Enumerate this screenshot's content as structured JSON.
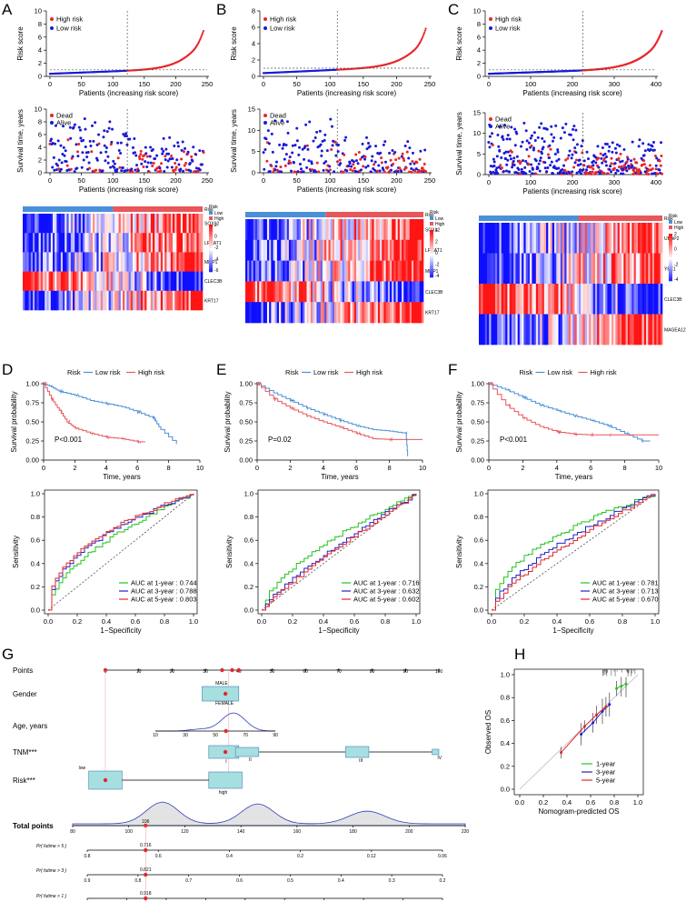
{
  "panel_labels": [
    "A",
    "B",
    "C",
    "D",
    "E",
    "F",
    "G",
    "H"
  ],
  "colors": {
    "high": "#e8262a",
    "low": "#1a1ad6",
    "green": "#22c41e",
    "blue": "#2222c8",
    "red": "#e0282d",
    "lowbar": "#4a90d9",
    "highbar": "#e8565a",
    "cal": "#f07c6c"
  },
  "chart_data": [
    {
      "id": "A1",
      "type": "scatter",
      "ylabel": "Risk score",
      "xlabel": "Patients (increasing risk score)",
      "xlim": [
        0,
        250
      ],
      "ylim": [
        0,
        10
      ],
      "xticks": [
        0,
        50,
        100,
        150,
        200,
        250
      ],
      "yticks": [
        0,
        2,
        4,
        6,
        8,
        10
      ],
      "n": 245,
      "cutoff_index": 123,
      "cutoff_value": 1,
      "legend": [
        "High risk",
        "Low risk"
      ]
    },
    {
      "id": "B1",
      "type": "scatter",
      "ylabel": "Risk score",
      "xlabel": "Patients (increasing risk score)",
      "xlim": [
        0,
        250
      ],
      "ylim": [
        0,
        8
      ],
      "xticks": [
        0,
        50,
        100,
        150,
        200,
        250
      ],
      "yticks": [
        0,
        2,
        4,
        6,
        8
      ],
      "n": 245,
      "cutoff_index": 111,
      "cutoff_value": 1,
      "legend": [
        "High risk",
        "Low risk"
      ]
    },
    {
      "id": "C1",
      "type": "scatter",
      "ylabel": "Risk score",
      "xlabel": "Patients (increasing risk score)",
      "xlim": [
        0,
        400
      ],
      "ylim": [
        0,
        10
      ],
      "xticks": [
        0,
        100,
        200,
        300,
        400
      ],
      "yticks": [
        0,
        2,
        4,
        6,
        8,
        10
      ],
      "n": 415,
      "cutoff_index": 225,
      "cutoff_value": 1,
      "legend": [
        "High risk",
        "Low risk"
      ]
    },
    {
      "id": "A2",
      "type": "scatter",
      "ylabel": "Survival time, years",
      "xlabel": "Patients (increasing risk score)",
      "xlim": [
        0,
        250
      ],
      "ylim": [
        0,
        10
      ],
      "xticks": [
        0,
        50,
        100,
        150,
        200,
        250
      ],
      "yticks": [
        0,
        2,
        4,
        6,
        8,
        10
      ],
      "legend": [
        "Dead",
        "Alive"
      ]
    },
    {
      "id": "B2",
      "type": "scatter",
      "ylabel": "Survival time, years",
      "xlabel": "Patients (increasing risk score)",
      "xlim": [
        0,
        250
      ],
      "ylim": [
        0,
        15
      ],
      "xticks": [
        0,
        50,
        100,
        150,
        200,
        250
      ],
      "yticks": [
        0,
        5,
        10,
        15
      ],
      "legend": [
        "Dead",
        "Alive"
      ]
    },
    {
      "id": "C2",
      "type": "scatter",
      "ylabel": "Survival time, years",
      "xlabel": "Patients (increasing risk score)",
      "xlim": [
        0,
        400
      ],
      "ylim": [
        0,
        15
      ],
      "xticks": [
        0,
        100,
        200,
        300,
        400
      ],
      "yticks": [
        0,
        5,
        10,
        15
      ],
      "legend": [
        "Dead",
        "Alive"
      ]
    },
    {
      "id": "A3",
      "type": "heatmap",
      "genes": [
        "SOX12",
        "LPCAT1",
        "MMP1",
        "CLEC3B",
        "KRT17"
      ],
      "legend_title": "Risk",
      "legend": [
        "Low",
        "High"
      ],
      "scale": [
        2,
        0,
        -2,
        -4,
        -6
      ],
      "label_left": "Risk"
    },
    {
      "id": "B3",
      "type": "heatmap",
      "genes": [
        "SOX12",
        "LPCAT1",
        "MMP1",
        "CLEC3B",
        "KRT17"
      ],
      "legend_title": "Risk",
      "legend": [
        "Low",
        "High"
      ],
      "scale": [
        4,
        2,
        0,
        -2,
        -4
      ],
      "label_left": "Risk"
    },
    {
      "id": "C3",
      "type": "heatmap",
      "genes": [
        "UBAP2",
        "YBX1",
        "CLEC3B",
        "MAGEA12"
      ],
      "legend_title": "Risk",
      "legend": [
        "Low",
        "High"
      ],
      "scale": [
        2,
        0,
        -2,
        -4
      ],
      "label_left": "Risk"
    },
    {
      "id": "D1",
      "type": "line",
      "title": "Risk",
      "legend": [
        "Low risk",
        "High risk"
      ],
      "ylabel": "Survival probability",
      "xlabel": "Time, years",
      "xticks": [
        0,
        2,
        4,
        6,
        8,
        10
      ],
      "yticks": [
        "0.00",
        "0.25",
        "0.50",
        "0.75",
        "1.00"
      ],
      "pvalue": "P<0.001",
      "series": [
        {
          "name": "Low risk",
          "points": [
            [
              0,
              1
            ],
            [
              0.5,
              0.96
            ],
            [
              1,
              0.9
            ],
            [
              2,
              0.85
            ],
            [
              3,
              0.78
            ],
            [
              4,
              0.74
            ],
            [
              5,
              0.7
            ],
            [
              6,
              0.63
            ],
            [
              7,
              0.55
            ],
            [
              7.5,
              0.4
            ],
            [
              8.5,
              0.21
            ]
          ]
        },
        {
          "name": "High risk",
          "points": [
            [
              0,
              1
            ],
            [
              0.5,
              0.8
            ],
            [
              1,
              0.65
            ],
            [
              1.5,
              0.5
            ],
            [
              2,
              0.42
            ],
            [
              3,
              0.35
            ],
            [
              4,
              0.3
            ],
            [
              5,
              0.28
            ],
            [
              6,
              0.24
            ],
            [
              6.5,
              0.24
            ]
          ]
        }
      ]
    },
    {
      "id": "E1",
      "type": "line",
      "title": "Risk",
      "legend": [
        "Low risk",
        "High risk"
      ],
      "ylabel": "Survival probability",
      "xlabel": "Time, years",
      "xticks": [
        0,
        2,
        4,
        6,
        8,
        10
      ],
      "yticks": [
        "0.00",
        "0.25",
        "0.50",
        "0.75",
        "1.00"
      ],
      "pvalue": "P=0.02",
      "series": [
        {
          "name": "Low risk",
          "points": [
            [
              0,
              1
            ],
            [
              1,
              0.88
            ],
            [
              2,
              0.78
            ],
            [
              3,
              0.68
            ],
            [
              4,
              0.6
            ],
            [
              5,
              0.52
            ],
            [
              6,
              0.45
            ],
            [
              7,
              0.4
            ],
            [
              8,
              0.38
            ],
            [
              9,
              0.35
            ],
            [
              9.1,
              0.05
            ]
          ]
        },
        {
          "name": "High risk",
          "points": [
            [
              0,
              1
            ],
            [
              1,
              0.8
            ],
            [
              2,
              0.68
            ],
            [
              3,
              0.58
            ],
            [
              4,
              0.5
            ],
            [
              5,
              0.43
            ],
            [
              6,
              0.35
            ],
            [
              7,
              0.28
            ],
            [
              8,
              0.27
            ],
            [
              10,
              0.27
            ]
          ]
        }
      ]
    },
    {
      "id": "F1",
      "type": "line",
      "title": "Risk",
      "legend": [
        "Low risk",
        "High risk"
      ],
      "ylabel": "Survival probability",
      "xlabel": "Time, years",
      "xticks": [
        0,
        2,
        4,
        6,
        8,
        10
      ],
      "yticks": [
        "0.00",
        "0.25",
        "0.50",
        "0.75",
        "1.00"
      ],
      "pvalue": "P<0.001",
      "series": [
        {
          "name": "Low risk",
          "points": [
            [
              0,
              1
            ],
            [
              1,
              0.92
            ],
            [
              2,
              0.82
            ],
            [
              3,
              0.72
            ],
            [
              4,
              0.65
            ],
            [
              5,
              0.58
            ],
            [
              6,
              0.52
            ],
            [
              7,
              0.45
            ],
            [
              8,
              0.35
            ],
            [
              9,
              0.25
            ],
            [
              9.5,
              0.25
            ]
          ]
        },
        {
          "name": "High risk",
          "points": [
            [
              0,
              1
            ],
            [
              1,
              0.72
            ],
            [
              2,
              0.55
            ],
            [
              3,
              0.44
            ],
            [
              4,
              0.37
            ],
            [
              5,
              0.34
            ],
            [
              6,
              0.33
            ],
            [
              7,
              0.33
            ],
            [
              8,
              0.33
            ],
            [
              10,
              0.33
            ]
          ]
        }
      ]
    },
    {
      "id": "D2",
      "type": "line",
      "ylabel": "Sensitivity",
      "xlabel": "1−Specificity",
      "xticks": [
        "0.0",
        "0.2",
        "0.4",
        "0.6",
        "0.8",
        "1.0"
      ],
      "yticks": [
        "0.0",
        "0.2",
        "0.4",
        "0.6",
        "0.8",
        "1.0"
      ],
      "series": [
        {
          "name": "AUC at 1-year",
          "auc": "0.744"
        },
        {
          "name": "AUC at 3-year",
          "auc": "0.788"
        },
        {
          "name": "AUC at 5-year",
          "auc": "0.803"
        }
      ]
    },
    {
      "id": "E2",
      "type": "line",
      "ylabel": "Sensitivity",
      "xlabel": "1−Specificity",
      "xticks": [
        "0.0",
        "0.2",
        "0.4",
        "0.6",
        "0.8",
        "1.0"
      ],
      "yticks": [
        "0.0",
        "0.2",
        "0.4",
        "0.6",
        "0.8",
        "1.0"
      ],
      "series": [
        {
          "name": "AUC at 1-year",
          "auc": "0.716"
        },
        {
          "name": "AUC at 3-year",
          "auc": "0.632"
        },
        {
          "name": "AUC at 5-year",
          "auc": "0.602"
        }
      ]
    },
    {
      "id": "F2",
      "type": "line",
      "ylabel": "Sensitivity",
      "xlabel": "1−Specificity",
      "xticks": [
        "0.0",
        "0.2",
        "0.4",
        "0.6",
        "0.8",
        "1.0"
      ],
      "yticks": [
        "0.0",
        "0.2",
        "0.4",
        "0.6",
        "0.8",
        "1.0"
      ],
      "series": [
        {
          "name": "AUC at 1-year",
          "auc": "0.781"
        },
        {
          "name": "AUC at 3-year",
          "auc": "0.713"
        },
        {
          "name": "AUC at 5-year",
          "auc": "0.670"
        }
      ]
    },
    {
      "id": "G",
      "type": "nomogram",
      "rows": [
        "Points",
        "Gender",
        "Age, years",
        "TNM***",
        "Risk***",
        "Total points",
        "Pr( futime > 5 )",
        "Pr( futime > 3 )",
        "Pr( futime > 1 )"
      ],
      "points_ticks": [
        0,
        10,
        20,
        30,
        40,
        50,
        60,
        70,
        80,
        90,
        100
      ],
      "gender_levels": [
        "MALE",
        "FEMALE"
      ],
      "age_ticks": [
        10,
        30,
        50,
        70,
        90
      ],
      "tnm_levels": [
        "I",
        "II",
        "III",
        "IV"
      ],
      "risk_levels": [
        "low",
        "high"
      ],
      "total_ticks": [
        80,
        100,
        120,
        140,
        160,
        180,
        200,
        220
      ],
      "total_value": "106",
      "p5_ticks": [
        "0.8",
        "0.6",
        "0.4",
        "0.2",
        "0.12",
        "0.06"
      ],
      "p5_value": "0.716",
      "p3_ticks": [
        "0.9",
        "0.8",
        "0.7",
        "0.6",
        "0.5",
        "0.4",
        "0.3",
        "0.2"
      ],
      "p3_value": "0.821",
      "p1_ticks": [
        "0.95",
        "0.9",
        "0.85",
        "0.8",
        "0.75",
        "0.7",
        "0.65",
        "0.6",
        "0.55",
        "0.5"
      ],
      "p1_value": "0.918"
    },
    {
      "id": "H",
      "type": "line",
      "xlabel": "Nomogram-predicted OS",
      "ylabel": "Observed OS",
      "xticks": [
        "0.0",
        "0.2",
        "0.4",
        "0.6",
        "0.8",
        "1.0"
      ],
      "yticks": [
        "0.0",
        "0.2",
        "0.4",
        "0.6",
        "0.8",
        "1.0"
      ],
      "series": [
        {
          "name": "1-year",
          "points": [
            [
              0.82,
              0.88
            ],
            [
              0.86,
              0.9
            ],
            [
              0.9,
              0.92
            ]
          ]
        },
        {
          "name": "3-year",
          "points": [
            [
              0.52,
              0.48
            ],
            [
              0.62,
              0.58
            ],
            [
              0.7,
              0.68
            ],
            [
              0.76,
              0.74
            ]
          ]
        },
        {
          "name": "5-year",
          "points": [
            [
              0.35,
              0.32
            ],
            [
              0.55,
              0.55
            ],
            [
              0.65,
              0.65
            ],
            [
              0.73,
              0.72
            ]
          ]
        }
      ]
    }
  ]
}
